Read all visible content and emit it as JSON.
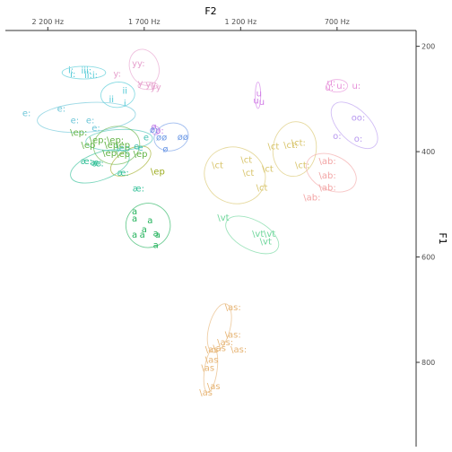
{
  "chart_data": {
    "type": "scatter",
    "title": "",
    "xlabel": "F2",
    "ylabel": "F1",
    "x_reversed": true,
    "y_reversed": true,
    "x_axis_position": "top",
    "y_axis_position": "right",
    "x_range": [
      2420,
      290
    ],
    "y_range": [
      170,
      960
    ],
    "x_ticks": [
      {
        "v": 2200,
        "label": "2 200 Hz"
      },
      {
        "v": 1700,
        "label": "1 700 Hz"
      },
      {
        "v": 1200,
        "label": "1 200 Hz"
      },
      {
        "v": 700,
        "label": "700 Hz"
      }
    ],
    "y_ticks": [
      {
        "v": 200,
        "label": "200"
      },
      {
        "v": 400,
        "label": "400"
      },
      {
        "v": 600,
        "label": "600"
      },
      {
        "v": 800,
        "label": "800"
      }
    ],
    "grid": false,
    "legend": "none",
    "groups": [
      {
        "color": "#4fc9d6",
        "ellipse": {
          "cx": 2013,
          "cy": 250,
          "rx": 113,
          "ry": 12,
          "angle": 0
        },
        "points": [
          {
            "t": "i:",
            "x": 2080,
            "y": 245
          },
          {
            "t": "i:",
            "x": 2070,
            "y": 253
          },
          {
            "t": "iii:",
            "x": 2000,
            "y": 246
          },
          {
            "t": "ii:",
            "x": 1990,
            "y": 254
          },
          {
            "t": "i:",
            "x": 1955,
            "y": 254
          }
        ]
      },
      {
        "color": "#4fc9d6",
        "ellipse": {
          "cx": 1837,
          "cy": 292,
          "rx": 88,
          "ry": 24,
          "angle": -5
        },
        "points": [
          {
            "t": "ii",
            "x": 1800,
            "y": 284
          },
          {
            "t": "ii",
            "x": 1870,
            "y": 300
          },
          {
            "t": "i",
            "x": 1800,
            "y": 308
          }
        ]
      },
      {
        "color": "#6cc6d8",
        "ellipse": {
          "cx": 2000,
          "cy": 335,
          "rx": 255,
          "ry": 28,
          "angle": -4
        },
        "points": [
          {
            "t": "e:",
            "x": 2310,
            "y": 327
          },
          {
            "t": "e:",
            "x": 2130,
            "y": 318
          },
          {
            "t": "e:",
            "x": 2060,
            "y": 340
          },
          {
            "t": "e:",
            "x": 1980,
            "y": 340
          },
          {
            "t": "e:",
            "x": 1950,
            "y": 355
          }
        ]
      },
      {
        "color": "#44c3b4",
        "ellipse": {
          "cx": 1830,
          "cy": 378,
          "rx": 173,
          "ry": 20,
          "angle": -3
        },
        "points": [
          {
            "t": "e",
            "x": 1690,
            "y": 373
          },
          {
            "t": "e",
            "x": 1740,
            "y": 390
          },
          {
            "t": "e",
            "x": 1720,
            "y": 392
          },
          {
            "t": "\\ep",
            "x": 1810,
            "y": 393
          }
        ]
      },
      {
        "color": "#62b345",
        "ellipse": {
          "cx": 1843,
          "cy": 388,
          "rx": 120,
          "ry": 36,
          "angle": -8
        },
        "points": [
          {
            "t": "\\ep:",
            "x": 2040,
            "y": 363
          },
          {
            "t": "\\ep:",
            "x": 1940,
            "y": 378
          },
          {
            "t": "\\ep:",
            "x": 1850,
            "y": 378
          },
          {
            "t": "\\ep",
            "x": 1990,
            "y": 387
          },
          {
            "t": "\\ep",
            "x": 1870,
            "y": 387
          },
          {
            "t": "\\ep",
            "x": 1810,
            "y": 387
          },
          {
            "t": "\\ep",
            "x": 1880,
            "y": 402
          },
          {
            "t": "\\ep",
            "x": 1810,
            "y": 404
          },
          {
            "t": "\\ep",
            "x": 1720,
            "y": 404
          }
        ]
      },
      {
        "color": "#9cab1e",
        "ellipse": {
          "cx": 1770,
          "cy": 418,
          "rx": 115,
          "ry": 22,
          "angle": -30
        },
        "points": [
          {
            "t": "\\ep",
            "x": 1630,
            "y": 437
          }
        ]
      },
      {
        "color": "#2fbf96",
        "ellipse": {
          "cx": 1930,
          "cy": 428,
          "rx": 160,
          "ry": 26,
          "angle": -20
        },
        "points": [
          {
            "t": "æ:",
            "x": 2000,
            "y": 418
          },
          {
            "t": "æ:",
            "x": 1940,
            "y": 422
          },
          {
            "t": "æ:",
            "x": 1950,
            "y": 420
          },
          {
            "t": "æ:",
            "x": 1810,
            "y": 440
          },
          {
            "t": "æ:",
            "x": 1730,
            "y": 470
          }
        ]
      },
      {
        "color": "#21b25a",
        "ellipse": {
          "cx": 1680,
          "cy": 540,
          "rx": 115,
          "ry": 42,
          "angle": -12
        },
        "points": [
          {
            "t": "a",
            "x": 1750,
            "y": 513
          },
          {
            "t": "a",
            "x": 1750,
            "y": 527
          },
          {
            "t": "a",
            "x": 1670,
            "y": 530
          },
          {
            "t": "a",
            "x": 1700,
            "y": 547
          },
          {
            "t": "a",
            "x": 1750,
            "y": 557
          },
          {
            "t": "a",
            "x": 1710,
            "y": 557
          },
          {
            "t": "a",
            "x": 1630,
            "y": 557
          },
          {
            "t": "a",
            "x": 1640,
            "y": 555
          },
          {
            "t": "a",
            "x": 1640,
            "y": 577
          }
        ]
      },
      {
        "color": "#e6a0cd",
        "ellipse": {
          "cx": 1700,
          "cy": 240,
          "rx": 75,
          "ry": 35,
          "angle": -20
        },
        "points": [
          {
            "t": "yy:",
            "x": 1730,
            "y": 232
          },
          {
            "t": "y:",
            "x": 1840,
            "y": 252
          },
          {
            "t": "y",
            "x": 1720,
            "y": 270
          },
          {
            "t": "yy",
            "x": 1665,
            "y": 272
          }
        ]
      },
      {
        "color": "#e6a0cd",
        "ellipse": {
          "cx": 1680,
          "cy": 275,
          "rx": 52,
          "ry": 7,
          "angle": 0
        },
        "points": [
          {
            "t": "yy",
            "x": 1640,
            "y": 277
          }
        ]
      },
      {
        "color": "#c07ae6",
        "ellipse": {
          "cx": 1640,
          "cy": 360,
          "rx": 20,
          "ry": 8,
          "angle": 0
        },
        "points": [
          {
            "t": "ø",
            "x": 1650,
            "y": 352
          },
          {
            "t": "ø:",
            "x": 1620,
            "y": 360
          }
        ]
      },
      {
        "color": "#6e9ae6",
        "ellipse": {
          "cx": 1560,
          "cy": 372,
          "rx": 90,
          "ry": 26,
          "angle": -15
        },
        "points": [
          {
            "t": "ø:",
            "x": 1650,
            "y": 358
          },
          {
            "t": "øø",
            "x": 1610,
            "y": 373
          },
          {
            "t": "øø",
            "x": 1500,
            "y": 372
          },
          {
            "t": "ø",
            "x": 1590,
            "y": 395
          }
        ]
      },
      {
        "color": "#d8c46a",
        "ellipse": {
          "cx": 1230,
          "cy": 445,
          "rx": 160,
          "ry": 53,
          "angle": 22
        },
        "points": [
          {
            "t": "\\ct",
            "x": 1320,
            "y": 425
          },
          {
            "t": "\\ct",
            "x": 1170,
            "y": 415
          },
          {
            "t": "\\ct",
            "x": 1160,
            "y": 440
          },
          {
            "t": "\\ct",
            "x": 1060,
            "y": 432
          },
          {
            "t": "\\ct",
            "x": 1090,
            "y": 468
          }
        ]
      },
      {
        "color": "#d8c46a",
        "ellipse": {
          "cx": 920,
          "cy": 395,
          "rx": 112,
          "ry": 52,
          "angle": 8
        },
        "points": [
          {
            "t": "\\ct",
            "x": 1030,
            "y": 390
          },
          {
            "t": "\\ct:",
            "x": 940,
            "y": 387
          },
          {
            "t": "\\ct:",
            "x": 900,
            "y": 383
          },
          {
            "t": "\\ct:",
            "x": 880,
            "y": 425
          }
        ]
      },
      {
        "color": "#6cd69a",
        "ellipse": {
          "cx": 1140,
          "cy": 558,
          "rx": 150,
          "ry": 28,
          "angle": 28
        },
        "points": [
          {
            "t": "\\vt",
            "x": 1290,
            "y": 525
          },
          {
            "t": "\\vt",
            "x": 1110,
            "y": 556
          },
          {
            "t": "\\vt",
            "x": 1050,
            "y": 556
          },
          {
            "t": "\\vt",
            "x": 1070,
            "y": 570
          }
        ]
      },
      {
        "color": "#e6b474",
        "ellipse": {
          "cx": 1310,
          "cy": 735,
          "rx": 130,
          "ry": 20,
          "angle": -75
        },
        "points": [
          {
            "t": "\\as:",
            "x": 1240,
            "y": 695
          },
          {
            "t": "\\as:",
            "x": 1240,
            "y": 747
          },
          {
            "t": "\\as:",
            "x": 1280,
            "y": 762
          },
          {
            "t": "\\as:",
            "x": 1210,
            "y": 775
          },
          {
            "t": "\\as",
            "x": 1310,
            "y": 773
          },
          {
            "t": "\\as",
            "x": 1350,
            "y": 775
          }
        ]
      },
      {
        "color": "#e6b474",
        "ellipse": {
          "cx": 1355,
          "cy": 815,
          "rx": 115,
          "ry": 12,
          "angle": -82
        },
        "points": [
          {
            "t": "\\as",
            "x": 1350,
            "y": 795
          },
          {
            "t": "\\as",
            "x": 1370,
            "y": 810
          },
          {
            "t": "\\as",
            "x": 1340,
            "y": 845
          },
          {
            "t": "\\as",
            "x": 1380,
            "y": 857
          }
        ]
      },
      {
        "color": "#f2a4a4",
        "ellipse": {
          "cx": 730,
          "cy": 440,
          "rx": 90,
          "ry": 50,
          "angle": -65
        },
        "points": [
          {
            "t": "\\ab:",
            "x": 750,
            "y": 418
          },
          {
            "t": "\\ab:",
            "x": 750,
            "y": 445
          },
          {
            "t": "\\ab:",
            "x": 750,
            "y": 468
          },
          {
            "t": "\\ab:",
            "x": 830,
            "y": 487
          }
        ]
      },
      {
        "color": "#b899f0",
        "ellipse": {
          "cx": 610,
          "cy": 350,
          "rx": 80,
          "ry": 55,
          "angle": -45
        },
        "points": [
          {
            "t": "oo:",
            "x": 590,
            "y": 335
          },
          {
            "t": "o:",
            "x": 700,
            "y": 370
          },
          {
            "t": "o:",
            "x": 590,
            "y": 375
          }
        ]
      },
      {
        "color": "#e68ed8",
        "ellipse": {
          "cx": 700,
          "cy": 275,
          "rx": 55,
          "ry": 12,
          "angle": 0
        },
        "points": [
          {
            "t": "u:",
            "x": 730,
            "y": 269
          },
          {
            "t": "u:",
            "x": 680,
            "y": 275
          },
          {
            "t": "u:",
            "x": 600,
            "y": 275
          },
          {
            "t": "u:",
            "x": 740,
            "y": 278
          }
        ]
      },
      {
        "color": "#d07ae6",
        "ellipse": {
          "cx": 1110,
          "cy": 293,
          "rx": 14,
          "ry": 25,
          "angle": 0
        },
        "points": [
          {
            "t": "u",
            "x": 1105,
            "y": 289
          },
          {
            "t": "u",
            "x": 1120,
            "y": 303
          },
          {
            "t": "u",
            "x": 1090,
            "y": 305
          }
        ]
      }
    ]
  }
}
